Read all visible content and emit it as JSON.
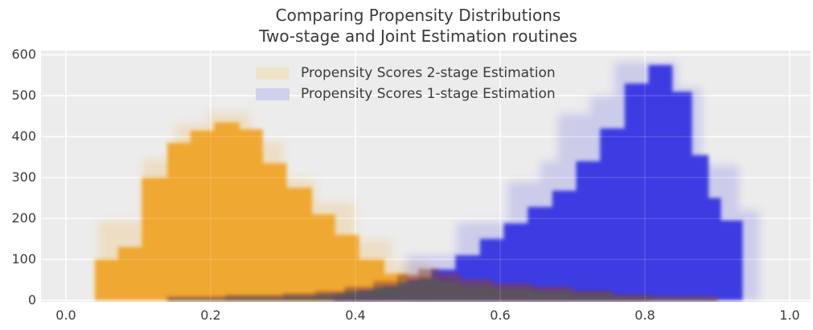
{
  "title": {
    "line1": "Comparing Propensity Distributions",
    "line2": "Two-stage and Joint Estimation routines",
    "color": "#3a3a3a"
  },
  "legend": {
    "position": "upper center",
    "items": [
      {
        "label": "Propensity Scores 2-stage Estimation",
        "swatch_color": "#f1e4c6"
      },
      {
        "label": "Propensity Scores 1-stage Estimation",
        "swatch_color": "#cfd0ee"
      }
    ]
  },
  "plot": {
    "background": "#ececec",
    "gridline_color": "#ffffff",
    "tick_color": "#3c3c3c"
  },
  "chart_data": {
    "type": "bar",
    "subtype": "overlaid-histograms",
    "title": "Comparing Propensity Distributions\nTwo-stage and Joint Estimation routines",
    "xlabel": "",
    "ylabel": "",
    "xlim": [
      -0.034,
      1.029
    ],
    "ylim": [
      0,
      612
    ],
    "grid": true,
    "x_ticks": [
      0.0,
      0.2,
      0.4,
      0.6,
      0.8,
      1.0
    ],
    "x_tick_labels": [
      "0.0",
      "0.2",
      "0.4",
      "0.6",
      "0.8",
      "1.0"
    ],
    "y_ticks": [
      0,
      100,
      200,
      300,
      400,
      500,
      600
    ],
    "y_tick_labels": [
      "0",
      "100",
      "200",
      "300",
      "400",
      "500",
      "600"
    ],
    "legend_position": "upper center",
    "series": [
      {
        "name": "Propensity Scores 2-stage Estimation",
        "color": "#f0a428",
        "bins": [
          [
            0.04,
            0.072,
            100
          ],
          [
            0.072,
            0.105,
            130
          ],
          [
            0.105,
            0.14,
            300
          ],
          [
            0.14,
            0.172,
            385
          ],
          [
            0.172,
            0.205,
            415
          ],
          [
            0.205,
            0.24,
            435
          ],
          [
            0.24,
            0.272,
            418
          ],
          [
            0.272,
            0.305,
            335
          ],
          [
            0.305,
            0.34,
            275
          ],
          [
            0.34,
            0.372,
            210
          ],
          [
            0.372,
            0.405,
            160
          ],
          [
            0.405,
            0.44,
            100
          ],
          [
            0.44,
            0.472,
            65
          ],
          [
            0.472,
            0.505,
            55
          ],
          [
            0.505,
            0.54,
            45
          ],
          [
            0.54,
            0.585,
            35
          ],
          [
            0.585,
            0.64,
            28
          ],
          [
            0.64,
            0.7,
            22
          ],
          [
            0.7,
            0.755,
            14
          ],
          [
            0.755,
            0.805,
            6
          ]
        ],
        "ghost_bins": [
          [
            0.045,
            0.105,
            195
          ],
          [
            0.105,
            0.15,
            345
          ],
          [
            0.15,
            0.195,
            430
          ],
          [
            0.195,
            0.255,
            458
          ],
          [
            0.255,
            0.3,
            388
          ],
          [
            0.3,
            0.345,
            298
          ],
          [
            0.345,
            0.4,
            238
          ],
          [
            0.4,
            0.45,
            148
          ],
          [
            0.45,
            0.505,
            92
          ]
        ]
      },
      {
        "name": "Propensity Scores 1-stage Estimation",
        "color": "#2d2de2",
        "bins": [
          [
            0.37,
            0.405,
            12
          ],
          [
            0.405,
            0.438,
            22
          ],
          [
            0.438,
            0.472,
            32
          ],
          [
            0.472,
            0.505,
            48
          ],
          [
            0.505,
            0.538,
            75
          ],
          [
            0.538,
            0.572,
            110
          ],
          [
            0.572,
            0.605,
            150
          ],
          [
            0.605,
            0.638,
            188
          ],
          [
            0.638,
            0.672,
            228
          ],
          [
            0.672,
            0.705,
            268
          ],
          [
            0.705,
            0.738,
            340
          ],
          [
            0.738,
            0.772,
            420
          ],
          [
            0.772,
            0.805,
            530
          ],
          [
            0.805,
            0.838,
            575
          ],
          [
            0.838,
            0.865,
            510
          ],
          [
            0.865,
            0.888,
            355
          ],
          [
            0.888,
            0.905,
            250
          ],
          [
            0.905,
            0.935,
            195
          ]
        ],
        "ghost_bins": [
          [
            0.47,
            0.54,
            110
          ],
          [
            0.54,
            0.61,
            190
          ],
          [
            0.61,
            0.655,
            290
          ],
          [
            0.655,
            0.68,
            340
          ],
          [
            0.68,
            0.725,
            455
          ],
          [
            0.725,
            0.758,
            500
          ],
          [
            0.758,
            0.845,
            582
          ],
          [
            0.845,
            0.878,
            520
          ],
          [
            0.878,
            0.93,
            330
          ],
          [
            0.93,
            0.958,
            220
          ]
        ]
      }
    ],
    "overlap": {
      "color": "#5a545c",
      "halo_color": "#8b4134",
      "bins": [
        [
          0.14,
          0.22,
          4
        ],
        [
          0.22,
          0.3,
          7
        ],
        [
          0.3,
          0.345,
          10
        ],
        [
          0.345,
          0.385,
          14
        ],
        [
          0.385,
          0.425,
          22
        ],
        [
          0.425,
          0.458,
          32
        ],
        [
          0.458,
          0.487,
          44
        ],
        [
          0.487,
          0.515,
          54
        ],
        [
          0.515,
          0.545,
          46
        ],
        [
          0.545,
          0.59,
          36
        ],
        [
          0.59,
          0.645,
          28
        ],
        [
          0.645,
          0.7,
          22
        ],
        [
          0.7,
          0.755,
          15
        ],
        [
          0.755,
          0.81,
          8
        ],
        [
          0.81,
          0.9,
          5
        ]
      ]
    }
  }
}
